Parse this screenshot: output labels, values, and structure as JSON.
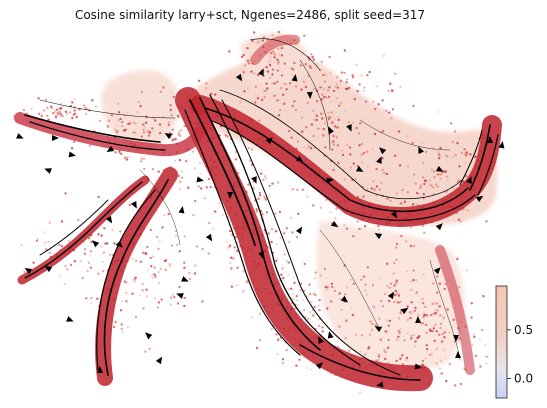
{
  "chart_data": {
    "type": "scatter",
    "title": "Cosine similarity larry+sct, Ngenes=2486, split seed=317",
    "description_of_marks": "",
    "xlabel": "",
    "ylabel": "",
    "grid": false,
    "axes_visible": false,
    "colorbar": {
      "colormap": "coolwarm",
      "range": [
        -0.2,
        0.95
      ],
      "ticks": [
        0.0,
        0.5
      ],
      "tick_labels": [
        "0.0",
        "0.5"
      ],
      "placement": "bottom-right"
    },
    "colors": {
      "high": "#b40426",
      "mid_high": "#e8785f",
      "mid": "#dddcdc",
      "low": "#3b4cc0",
      "streamline": "#000000"
    }
  }
}
